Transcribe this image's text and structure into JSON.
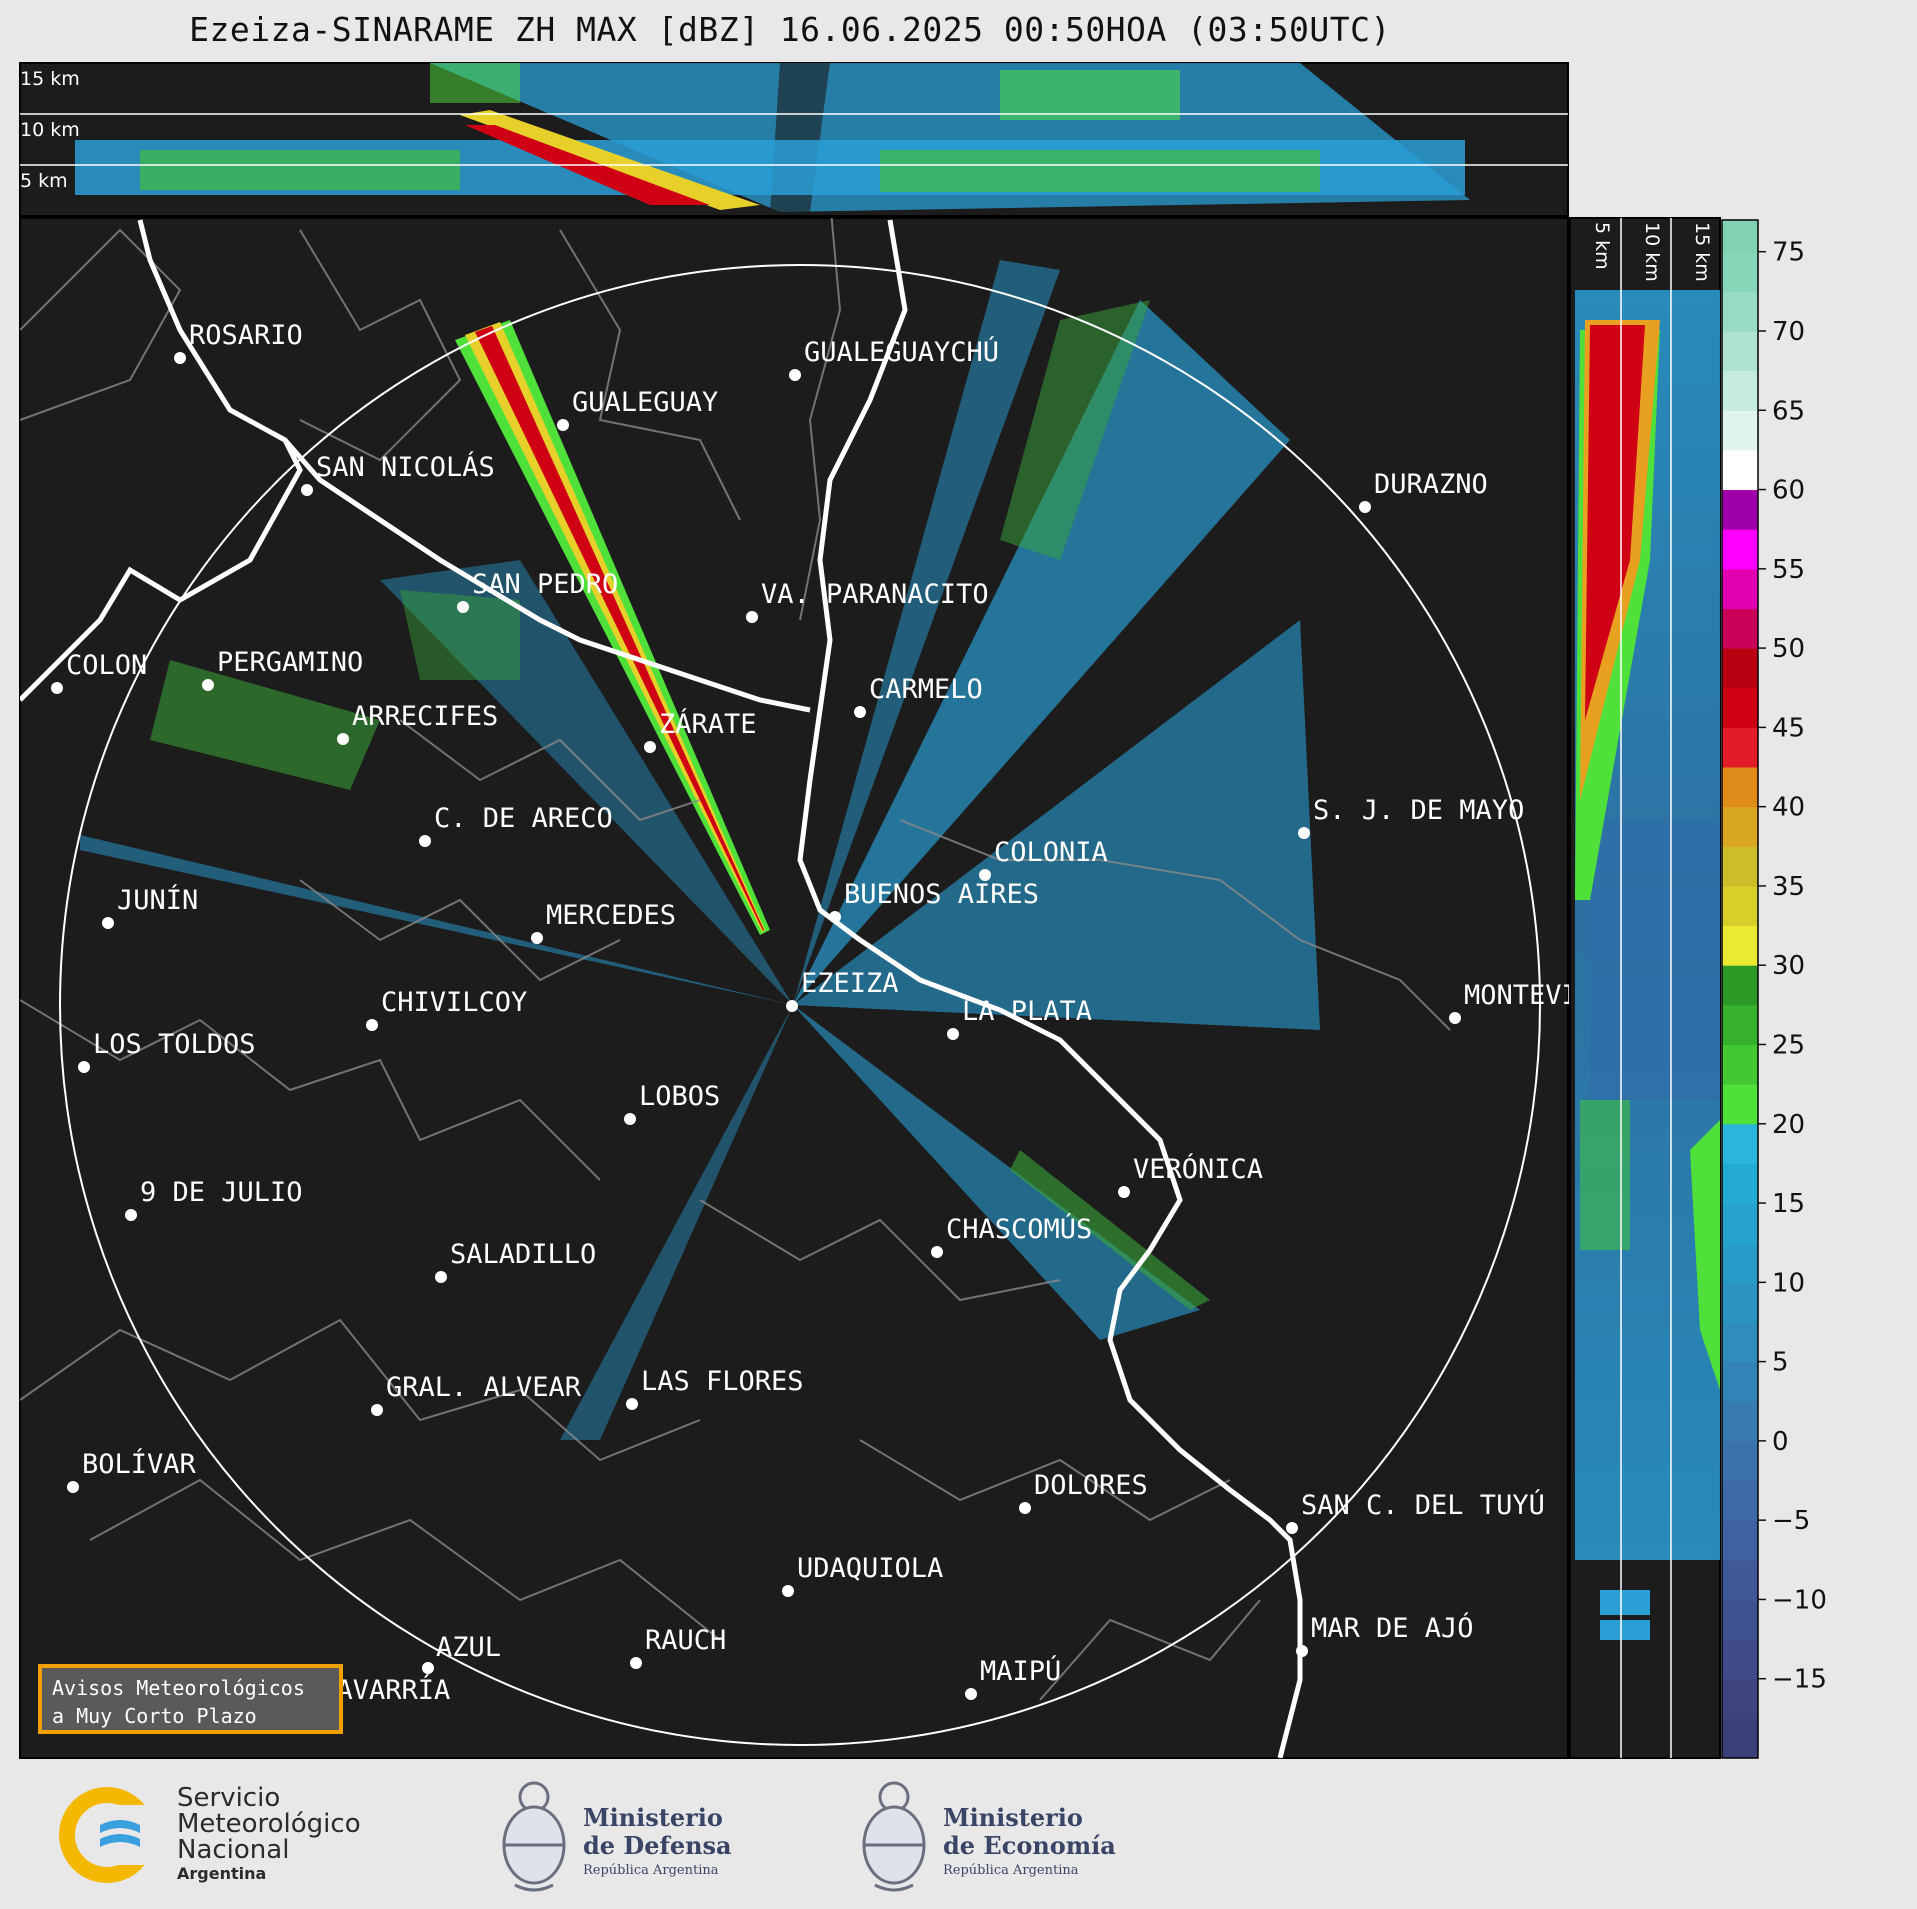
{
  "title": "Ezeiza-SINARAME ZH MAX [dBZ] 16.06.2025 00:50HOA (03:50UTC)",
  "top_panel": {
    "height_labels": [
      "15 km",
      "10 km",
      "5 km"
    ]
  },
  "side_panel": {
    "height_labels": [
      "5 km",
      "10 km",
      "15 km"
    ]
  },
  "colorbar": {
    "ticks": [
      "75",
      "70",
      "65",
      "60",
      "55",
      "50",
      "45",
      "40",
      "35",
      "30",
      "25",
      "20",
      "15",
      "10",
      "5",
      "0",
      "−5",
      "−10",
      "−15"
    ],
    "range_dbz": [
      -20,
      77
    ]
  },
  "map": {
    "radar_site": "EZEIZA",
    "cities": [
      {
        "name": "ROSARIO"
      },
      {
        "name": "GUALEGUAYCHÚ"
      },
      {
        "name": "GUALEGUAY"
      },
      {
        "name": "SAN NICOLÁS"
      },
      {
        "name": "DURAZNO"
      },
      {
        "name": "SAN PEDRO"
      },
      {
        "name": "VA. PARANACITO"
      },
      {
        "name": "COLON"
      },
      {
        "name": "PERGAMINO"
      },
      {
        "name": "CARMELO"
      },
      {
        "name": "ARRECIFES"
      },
      {
        "name": "ZÁRATE"
      },
      {
        "name": "S. J. DE MAYO"
      },
      {
        "name": "C. DE ARECO"
      },
      {
        "name": "COLONIA"
      },
      {
        "name": "BUENOS AIRES"
      },
      {
        "name": "JUNÍN"
      },
      {
        "name": "MERCEDES"
      },
      {
        "name": "EZEIZA"
      },
      {
        "name": "MONTEVIDEO"
      },
      {
        "name": "CHIVILCOY"
      },
      {
        "name": "LA PLATA"
      },
      {
        "name": "LOS TOLDOS"
      },
      {
        "name": "LOBOS"
      },
      {
        "name": "VERÓNICA"
      },
      {
        "name": "9 DE JULIO"
      },
      {
        "name": "CHASCOMÚS"
      },
      {
        "name": "SALADILLO"
      },
      {
        "name": "GRAL. ALVEAR"
      },
      {
        "name": "LAS FLORES"
      },
      {
        "name": "BOLÍVAR"
      },
      {
        "name": "DOLORES"
      },
      {
        "name": "SAN C. DEL TUYÚ"
      },
      {
        "name": "UDAQUIOLA"
      },
      {
        "name": "MAR DE AJÓ"
      },
      {
        "name": "AZUL"
      },
      {
        "name": "RAUCH"
      },
      {
        "name": "OLAVARRÍA"
      },
      {
        "name": "MAIPÚ"
      }
    ]
  },
  "alert_box": {
    "line1": "Avisos Meteorológicos",
    "line2": "a Muy Corto Plazo"
  },
  "logos": {
    "smn": {
      "line1": "Servicio",
      "line2": "Meteorológico",
      "line3": "Nacional",
      "line4": "Argentina"
    },
    "defensa": {
      "line1": "Ministerio",
      "line2": "de Defensa",
      "line3": "República Argentina"
    },
    "economia": {
      "line1": "Ministerio",
      "line2": "de Economía",
      "line3": "República Argentina"
    }
  },
  "colors": {
    "background": "#1c1c1c",
    "frame": "#e8e8e8",
    "alert_border": "#f0a000",
    "smn_blue": "#3aa0e0",
    "smn_yellow": "#f5b800"
  }
}
